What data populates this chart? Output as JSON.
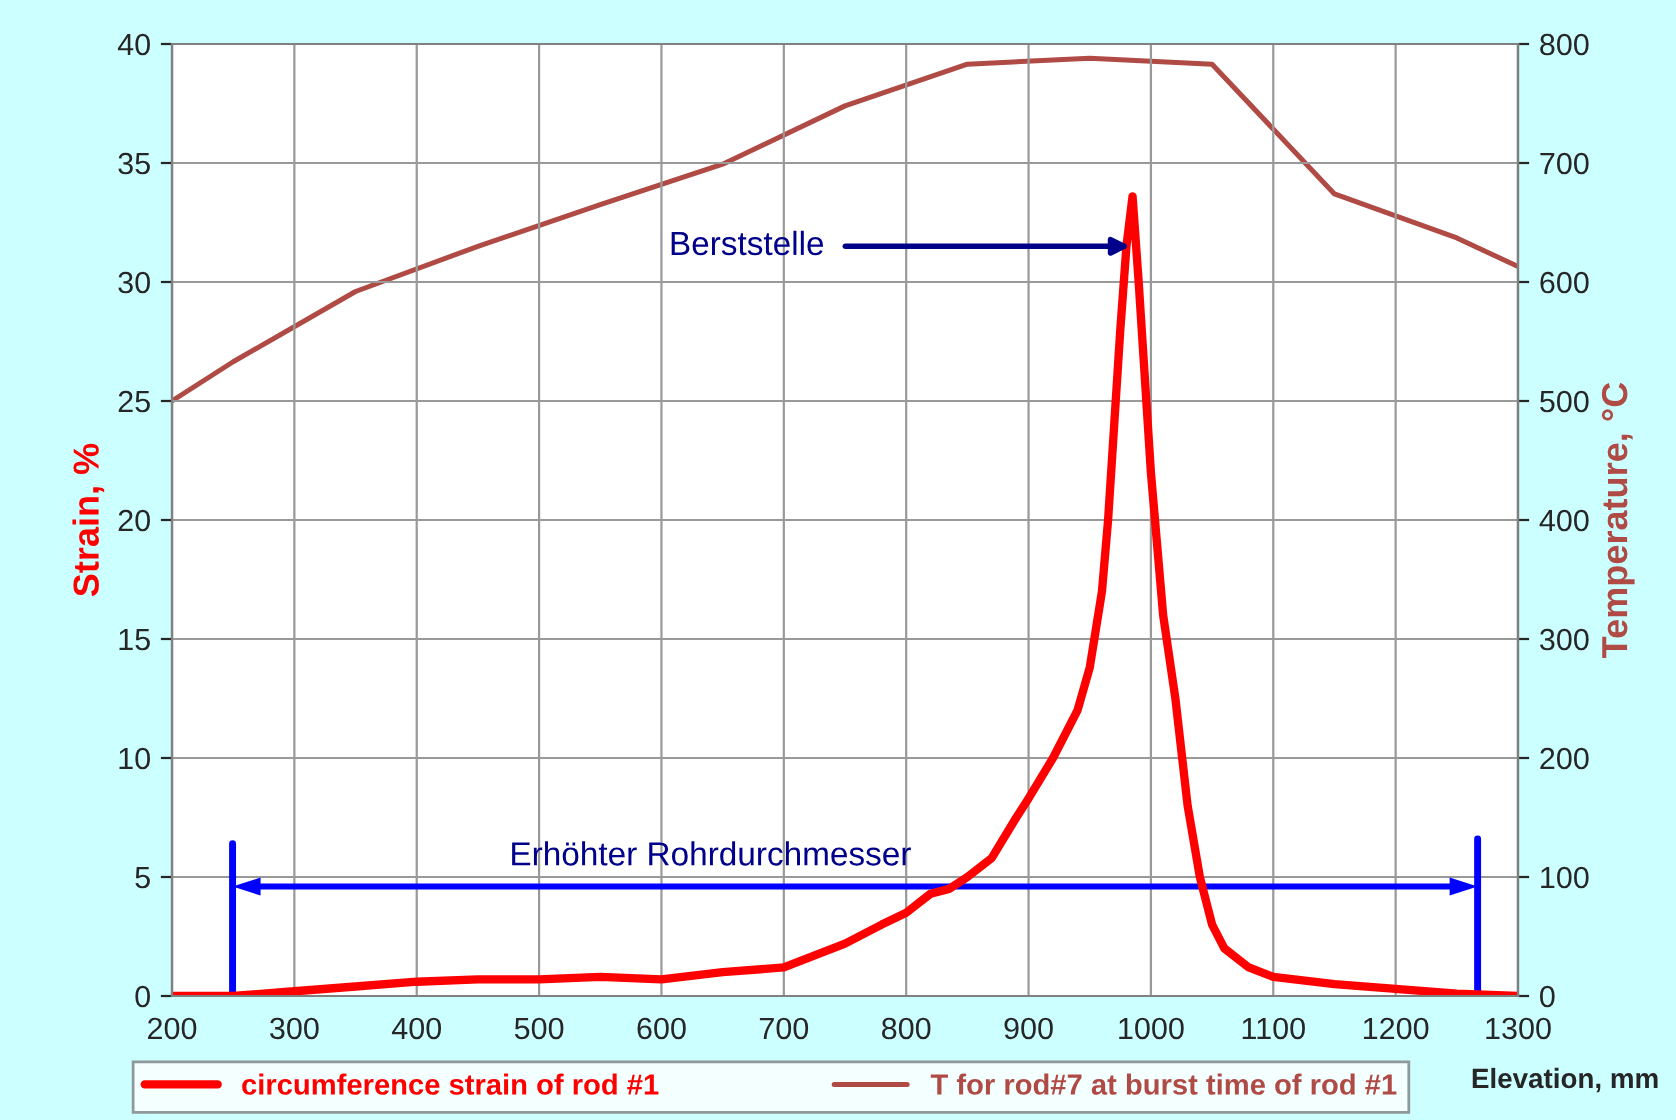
{
  "chart_data": {
    "type": "line",
    "xlabel": "Elevation, mm",
    "ylabel": "Strain, %",
    "y2label": "Temperature, °C",
    "xlim": [
      200,
      1300
    ],
    "xticks": [
      200,
      300,
      400,
      500,
      600,
      700,
      800,
      900,
      1000,
      1100,
      1200,
      1300
    ],
    "ylim": [
      0,
      40
    ],
    "yticks": [
      0,
      5,
      10,
      15,
      20,
      25,
      30,
      35,
      40
    ],
    "y2lim": [
      0,
      800
    ],
    "y2ticks": [
      0,
      100,
      200,
      300,
      400,
      500,
      600,
      700,
      800
    ],
    "grid": true,
    "legend": "bottom",
    "series": [
      {
        "name": "circumference strain of rod #1",
        "color": "#ff0000",
        "x": [
          200,
          250,
          300,
          350,
          400,
          450,
          500,
          550,
          600,
          650,
          700,
          720,
          750,
          780,
          800,
          820,
          835,
          850,
          870,
          890,
          900,
          920,
          940,
          950,
          960,
          965,
          970,
          975,
          980,
          985,
          990,
          1000,
          1010,
          1020,
          1030,
          1040,
          1050,
          1060,
          1080,
          1100,
          1150,
          1200,
          1250,
          1300
        ],
        "values": [
          0,
          0,
          0.2,
          0.4,
          0.6,
          0.7,
          0.7,
          0.8,
          0.7,
          1.0,
          1.2,
          1.6,
          2.2,
          3.0,
          3.5,
          4.3,
          4.5,
          5.0,
          5.8,
          7.5,
          8.3,
          10.0,
          12,
          13.8,
          17,
          20,
          24,
          28,
          31.5,
          33.6,
          30,
          22,
          16,
          12.5,
          8,
          5,
          3,
          2,
          1.2,
          0.8,
          0.5,
          0.3,
          0.1,
          0
        ]
      },
      {
        "name": "T for rod#7 at burst time of rod #1",
        "color": "#b04a45",
        "axis": "y2",
        "x": [
          200,
          250,
          350,
          450,
          550,
          650,
          750,
          850,
          950,
          1050,
          1150,
          1250,
          1300
        ],
        "values": [
          500,
          533,
          592,
          630,
          665,
          699,
          748,
          783,
          788,
          783,
          674,
          637,
          613
        ]
      }
    ],
    "annotations": [
      {
        "text": "Berststelle",
        "x": 983,
        "y": 31.5
      },
      "Erhöhter Rohrdurchmesser"
    ]
  }
}
